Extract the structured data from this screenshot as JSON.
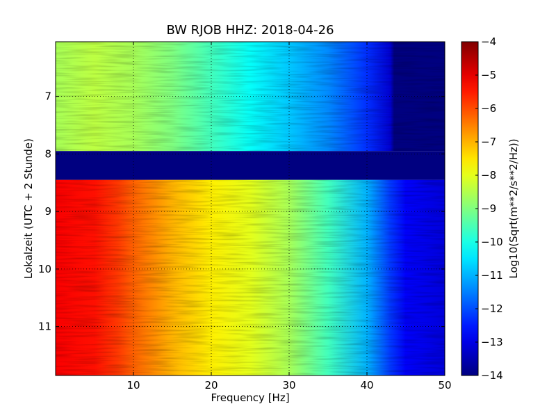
{
  "chart_data": {
    "type": "heatmap",
    "title": "BW RJOB HHZ: 2018-04-26",
    "xlabel": "Frequency [Hz]",
    "ylabel": "Lokalzeit (UTC + 2 Stunde)",
    "xlim": [
      0,
      50
    ],
    "ylim": [
      11.85,
      6.05
    ],
    "x_ticks": [
      10,
      20,
      30,
      40,
      50
    ],
    "y_ticks": [
      7,
      8,
      9,
      10,
      11
    ],
    "grid": true,
    "colormap": "jet",
    "colorbar": {
      "label": "Log10(Sqrt(m**2/s**2/Hz))",
      "range": [
        -14,
        -4
      ],
      "ticks": [
        -4,
        -5,
        -6,
        -7,
        -8,
        -9,
        -10,
        -11,
        -12,
        -13,
        -14
      ]
    },
    "gap": {
      "from_hour": 7.95,
      "to_hour": 8.45,
      "value": -14
    },
    "bands": [
      {
        "name": "",
        "from_hour": 6.05,
        "to_hour": 7.95,
        "profile": [
          [
            0,
            -8.6
          ],
          [
            5,
            -8.4
          ],
          [
            10,
            -8.6
          ],
          [
            15,
            -9.0
          ],
          [
            20,
            -9.6
          ],
          [
            25,
            -10.2
          ],
          [
            30,
            -10.8
          ],
          [
            35,
            -11.4
          ],
          [
            40,
            -12.3
          ],
          [
            43,
            -13.2
          ],
          [
            43.5,
            -14
          ],
          [
            50,
            -14
          ]
        ]
      },
      {
        "name": "",
        "from_hour": 8.45,
        "to_hour": 11.85,
        "profile": [
          [
            0,
            -5.2
          ],
          [
            5,
            -5.4
          ],
          [
            8,
            -5.8
          ],
          [
            10,
            -6.2
          ],
          [
            15,
            -7.0
          ],
          [
            20,
            -7.6
          ],
          [
            25,
            -8.0
          ],
          [
            30,
            -8.6
          ],
          [
            35,
            -9.6
          ],
          [
            40,
            -11.0
          ],
          [
            43,
            -12.2
          ],
          [
            45,
            -12.8
          ],
          [
            50,
            -13.1
          ]
        ]
      }
    ]
  }
}
